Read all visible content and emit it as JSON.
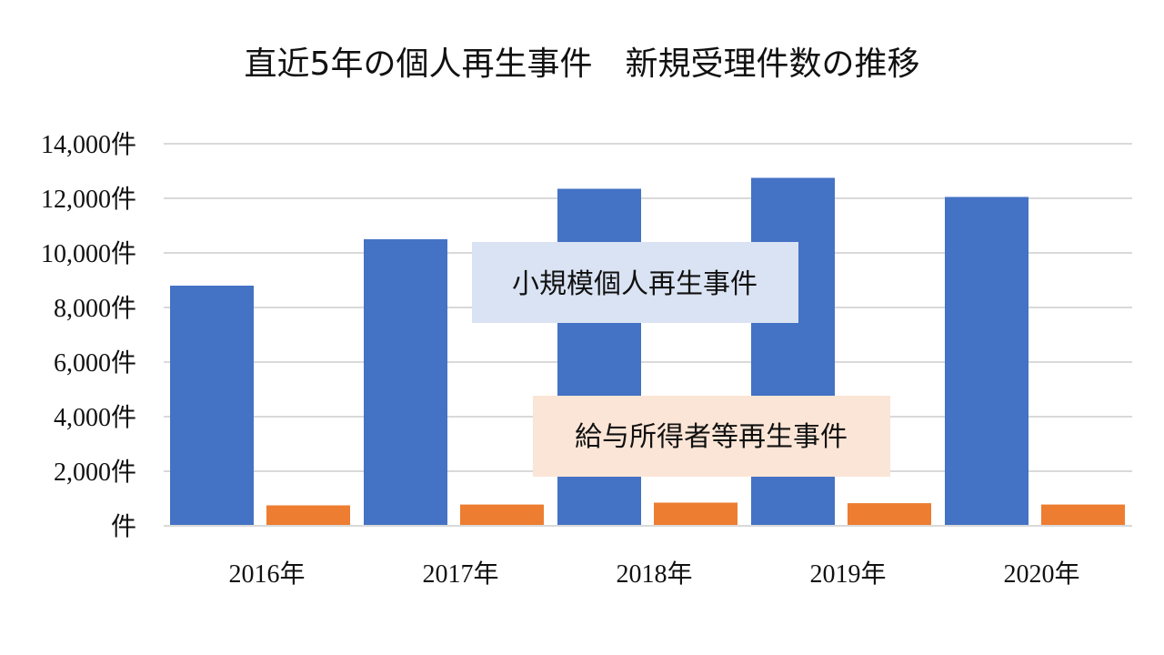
{
  "chart_data": {
    "type": "bar",
    "title": "直近5年の個人再生事件　新規受理件数の推移",
    "categories": [
      "2016年",
      "2017年",
      "2018年",
      "2019年",
      "2020年"
    ],
    "series": [
      {
        "name": "小規模個人再生事件",
        "values": [
          8800,
          10500,
          12350,
          12750,
          12050
        ],
        "color": "#4472C4"
      },
      {
        "name": "給与所得者等再生事件",
        "values": [
          750,
          780,
          850,
          830,
          780
        ],
        "color": "#ED7D31"
      }
    ],
    "ylim": [
      0,
      14000
    ],
    "yticks": [
      0,
      2000,
      4000,
      6000,
      8000,
      10000,
      12000,
      14000
    ],
    "ytick_labels": [
      "件",
      "2,000件",
      "4,000件",
      "6,000件",
      "8,000件",
      "10,000件",
      "12,000件",
      "14,000件"
    ],
    "grid": true,
    "legend": "inline labels in center of plot",
    "label_box_colors": [
      "#DAE3F3",
      "#FBE5D6"
    ]
  }
}
